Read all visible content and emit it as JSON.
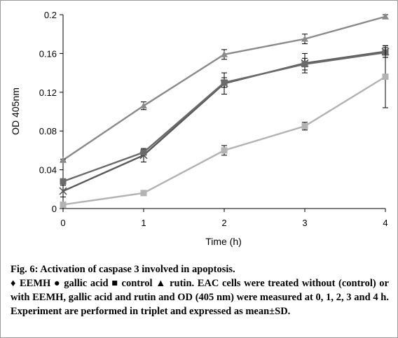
{
  "chart_data": {
    "type": "line",
    "title": "",
    "xlabel": "Time (h)",
    "ylabel": "OD  405nm",
    "x": [
      0,
      1,
      2,
      3,
      4
    ],
    "xlim": [
      0,
      4
    ],
    "ylim": [
      0,
      0.2
    ],
    "x_ticks": [
      "0",
      "1",
      "2",
      "3",
      "4"
    ],
    "y_ticks": [
      "0",
      "0.04",
      "0.08",
      "0.12",
      "0.16",
      "0.2"
    ],
    "grid": false,
    "legend": "none",
    "series": [
      {
        "name": "rutin",
        "marker": "triangle",
        "color": "#8a8a8a",
        "values": [
          0.05,
          0.106,
          0.159,
          0.175,
          0.198
        ],
        "errors": [
          0.001,
          0.004,
          0.005,
          0.005,
          0.002
        ]
      },
      {
        "name": "EEMH",
        "marker": "star",
        "color": "#5a5a5a",
        "values": [
          0.018,
          0.055,
          0.129,
          0.15,
          0.162
        ],
        "errors": [
          0.006,
          0.007,
          0.011,
          0.01,
          0.006
        ]
      },
      {
        "name": "gallic acid",
        "marker": "square",
        "color": "#6a6a6a",
        "values": [
          0.028,
          0.058,
          0.13,
          0.149,
          0.161
        ],
        "errors": [
          0.002,
          0.003,
          0.005,
          0.006,
          0.005
        ]
      },
      {
        "name": "control",
        "marker": "square",
        "color": "#b3b3b3",
        "values": [
          0.004,
          0.016,
          0.06,
          0.085,
          0.136
        ],
        "errors": [
          0.001,
          0.001,
          0.005,
          0.004,
          0.032
        ]
      }
    ]
  },
  "caption": {
    "title": "Fig. 6: Activation of caspase 3 involved in apoptosis.",
    "body": "♦ EEMH ● gallic acid ■ control ▲ rutin. EAC cells were treated without (control) or with EEMH, gallic acid and rutin and OD (405 nm) were measured at 0, 1, 2, 3 and 4 h. Experiment are performed in triplet and expressed as mean±SD."
  }
}
